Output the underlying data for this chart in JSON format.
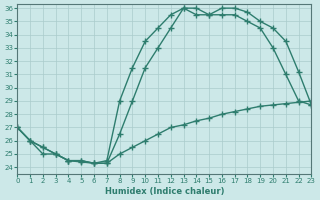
{
  "xlabel": "Humidex (Indice chaleur)",
  "ylabel": "",
  "background_color": "#cce8e8",
  "line_color": "#2e7d6e",
  "grid_color": "#aacccc",
  "xlim": [
    0,
    23
  ],
  "ylim": [
    24,
    36
  ],
  "yticks": [
    24,
    25,
    26,
    27,
    28,
    29,
    30,
    31,
    32,
    33,
    34,
    35,
    36
  ],
  "xticks": [
    0,
    1,
    2,
    3,
    4,
    5,
    6,
    7,
    8,
    9,
    10,
    11,
    12,
    13,
    14,
    15,
    16,
    17,
    18,
    19,
    20,
    21,
    22,
    23
  ],
  "line1_x": [
    0,
    1,
    2,
    3,
    4,
    5,
    6,
    7,
    8,
    9,
    10,
    11,
    12,
    13,
    14,
    15,
    16,
    17,
    18,
    19,
    20,
    21,
    22,
    23
  ],
  "line1_y": [
    27.0,
    26.0,
    25.0,
    25.0,
    24.5,
    24.5,
    24.3,
    24.5,
    29.0,
    31.5,
    33.5,
    34.5,
    35.5,
    36.0,
    36.0,
    35.5,
    36.0,
    36.0,
    35.7,
    35.0,
    34.5,
    33.5,
    31.2,
    28.7
  ],
  "line2_x": [
    0,
    1,
    2,
    3,
    4,
    5,
    6,
    7,
    8,
    9,
    10,
    11,
    12,
    13,
    14,
    15,
    16,
    17,
    18,
    19,
    20,
    21,
    22,
    23
  ],
  "line2_y": [
    27.0,
    26.0,
    25.5,
    25.0,
    24.5,
    24.5,
    24.3,
    24.3,
    26.5,
    29.0,
    31.5,
    33.0,
    34.5,
    36.0,
    35.5,
    35.5,
    35.5,
    35.5,
    35.0,
    34.5,
    33.0,
    31.0,
    29.0,
    28.7
  ],
  "line3_x": [
    0,
    1,
    2,
    3,
    4,
    5,
    6,
    7,
    8,
    9,
    10,
    11,
    12,
    13,
    14,
    15,
    16,
    17,
    18,
    19,
    20,
    21,
    22,
    23
  ],
  "line3_y": [
    27.0,
    26.0,
    25.5,
    25.0,
    24.5,
    24.4,
    24.3,
    24.3,
    25.0,
    25.5,
    26.0,
    26.5,
    27.0,
    27.2,
    27.5,
    27.7,
    28.0,
    28.2,
    28.4,
    28.6,
    28.7,
    28.8,
    28.9,
    29.0
  ]
}
